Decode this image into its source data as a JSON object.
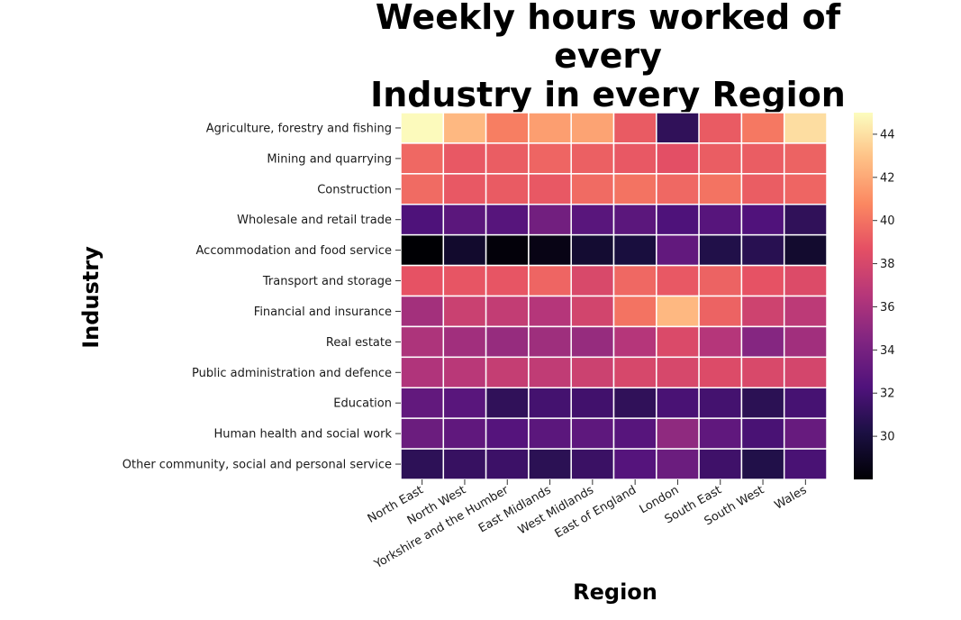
{
  "chart_data": {
    "type": "heatmap",
    "title": "Weekly hours worked of every\nIndustry in every Region",
    "xlabel": "Region",
    "ylabel": "Industry",
    "colormap": "magma",
    "color_range": [
      28,
      45
    ],
    "colorbar_ticks": [
      30,
      32,
      34,
      36,
      38,
      40,
      42,
      44
    ],
    "x_categories": [
      "North East",
      "North West",
      "Yorkshire and the Humber",
      "East Midlands",
      "West Midlands",
      "East of England",
      "London",
      "South East",
      "South West",
      "Wales"
    ],
    "y_categories": [
      "Agriculture, forestry and fishing",
      "Mining and quarrying",
      "Construction",
      "Wholesale and retail trade",
      "Accommodation and food service",
      "Transport and storage",
      "Financial and insurance",
      "Real estate",
      "Public administration and defence",
      "Education",
      "Human health and social work",
      "Other community, social and personal service"
    ],
    "values": [
      [
        44.9,
        42.6,
        40.4,
        41.6,
        41.8,
        39.1,
        31.0,
        39.1,
        40.2,
        43.9
      ],
      [
        39.6,
        39.0,
        39.2,
        39.5,
        39.3,
        39.0,
        38.6,
        39.2,
        39.2,
        39.4
      ],
      [
        39.7,
        39.0,
        39.1,
        39.0,
        39.7,
        40.0,
        39.6,
        40.0,
        39.2,
        39.5
      ],
      [
        32.2,
        32.8,
        32.6,
        33.8,
        32.7,
        32.8,
        32.2,
        32.6,
        32.3,
        31.0
      ],
      [
        28.0,
        29.4,
        28.2,
        28.6,
        29.6,
        30.0,
        33.1,
        30.4,
        30.7,
        29.5
      ],
      [
        38.8,
        38.9,
        38.9,
        39.5,
        38.1,
        39.6,
        39.0,
        39.4,
        38.8,
        38.3
      ],
      [
        35.8,
        37.4,
        37.1,
        36.5,
        37.8,
        40.0,
        42.6,
        39.4,
        37.6,
        36.8
      ],
      [
        36.2,
        35.7,
        35.3,
        35.6,
        35.3,
        36.5,
        38.2,
        36.5,
        34.6,
        35.7
      ],
      [
        36.3,
        36.7,
        37.2,
        37.0,
        37.5,
        38.0,
        38.0,
        38.3,
        38.1,
        37.9
      ],
      [
        33.1,
        32.7,
        31.0,
        31.8,
        31.7,
        31.0,
        32.0,
        31.8,
        30.8,
        31.9
      ],
      [
        33.5,
        33.0,
        32.5,
        32.8,
        32.9,
        32.6,
        35.0,
        33.0,
        32.0,
        33.3
      ],
      [
        30.9,
        31.3,
        31.5,
        30.8,
        31.4,
        32.5,
        33.5,
        31.6,
        30.4,
        32.0
      ]
    ]
  }
}
